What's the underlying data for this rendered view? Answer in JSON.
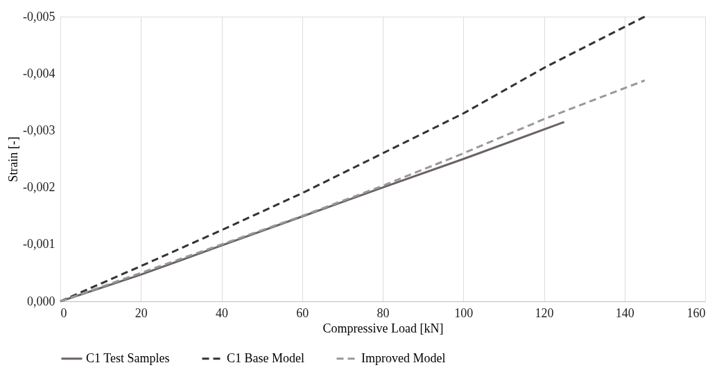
{
  "chart_data": {
    "type": "line",
    "xlabel": "Compressive Load [kN]",
    "ylabel": "Strain [-]",
    "xlim": [
      0,
      160
    ],
    "xticks": [
      0,
      20,
      40,
      60,
      80,
      100,
      120,
      140,
      160
    ],
    "ylim": [
      0,
      -0.005
    ],
    "yticks": [
      {
        "value": 0,
        "label": "0,000"
      },
      {
        "value": -0.001,
        "label": "-0,001"
      },
      {
        "value": -0.002,
        "label": "-0,002"
      },
      {
        "value": -0.003,
        "label": "-0,003"
      },
      {
        "value": -0.004,
        "label": "-0,004"
      },
      {
        "value": -0.005,
        "label": "-0,005"
      }
    ],
    "grid": "x",
    "legend": "bottom",
    "marker": "none",
    "series": [
      {
        "name": "C1 Test Samples",
        "color": "#6b6262",
        "line_style": "solid",
        "x": [
          0,
          20,
          40,
          60,
          80,
          100,
          125
        ],
        "values": [
          0,
          -0.00047,
          -0.00098,
          -0.00149,
          -0.002,
          -0.0025,
          -0.00315
        ]
      },
      {
        "name": "C1 Base Model",
        "color": "#333333",
        "line_style": "dashed",
        "x": [
          0,
          20,
          40,
          60,
          80,
          100,
          120,
          145
        ],
        "values": [
          0,
          -0.00062,
          -0.00125,
          -0.0019,
          -0.0026,
          -0.0033,
          -0.0041,
          -0.005
        ]
      },
      {
        "name": "Improved Model",
        "color": "#999999",
        "line_style": "dashed",
        "x": [
          0,
          20,
          40,
          60,
          80,
          100,
          120,
          145
        ],
        "values": [
          0,
          -0.0005,
          -0.001,
          -0.0015,
          -0.00203,
          -0.0026,
          -0.0032,
          -0.00388
        ]
      }
    ]
  }
}
